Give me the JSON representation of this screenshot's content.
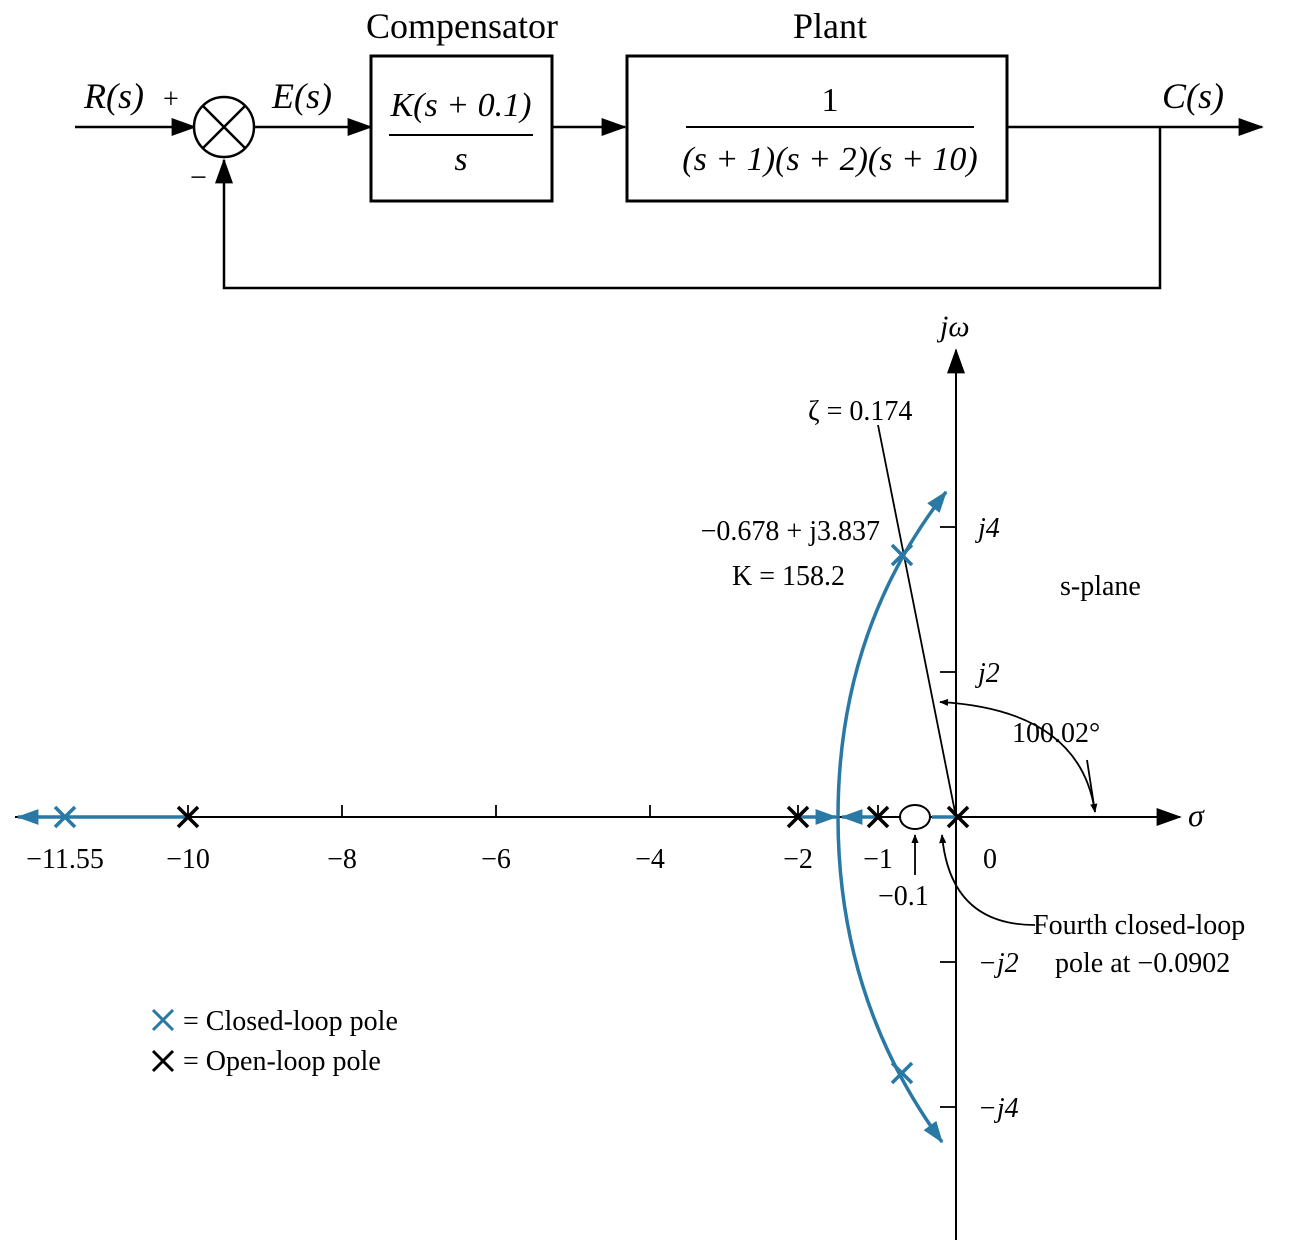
{
  "block_diagram": {
    "input_label": "R(s)",
    "plus_sign": "+",
    "minus_sign": "−",
    "error_label": "E(s)",
    "output_label": "C(s)",
    "compensator": {
      "title": "Compensator",
      "numerator": "K(s + 0.1)",
      "denominator": "s"
    },
    "plant": {
      "title": "Plant",
      "numerator": "1",
      "denominator": "(s + 1)(s + 2)(s + 10)"
    }
  },
  "root_locus": {
    "imag_axis_label": "jω",
    "real_axis_label": "σ",
    "plane_label": "s-plane",
    "x_ticks": [
      {
        "value": -10,
        "label": "−10"
      },
      {
        "value": -8,
        "label": "−8"
      },
      {
        "value": -6,
        "label": "−6"
      },
      {
        "value": -4,
        "label": "−4"
      },
      {
        "value": -2,
        "label": "−2"
      },
      {
        "value": -1,
        "label": "−1"
      },
      {
        "value": 0,
        "label": "0"
      }
    ],
    "x_extra_label": {
      "value": -11.55,
      "label": "−11.55"
    },
    "y_ticks": [
      {
        "value": 4,
        "label": "j4"
      },
      {
        "value": 2,
        "label": "j2"
      },
      {
        "value": -2,
        "label": "−j2"
      },
      {
        "value": -4,
        "label": "−j4"
      }
    ],
    "zeta_label": "ζ = 0.174",
    "zeta": 0.174,
    "angle_label": "100.02°",
    "dominant_pole_label": "−0.678 + j3.837",
    "gain_label": "K = 158.2",
    "zero_label": "−0.1",
    "fourth_pole_label_line1": "Fourth closed-loop",
    "fourth_pole_label_line2": "pole at −0.0902",
    "open_loop_poles": [
      0,
      -1,
      -2,
      -10
    ],
    "zero": -0.1,
    "closed_loop_poles": [
      {
        "re": -0.678,
        "im": 3.837
      },
      {
        "re": -0.678,
        "im": -3.837
      },
      {
        "re": -11.55,
        "im": 0
      },
      {
        "re": -0.0902,
        "im": 0
      }
    ],
    "legend": {
      "closed_loop": "= Closed-loop pole",
      "open_loop": "= Open-loop pole"
    },
    "colors": {
      "locus": "#2a78a4",
      "axis": "#000000"
    }
  }
}
